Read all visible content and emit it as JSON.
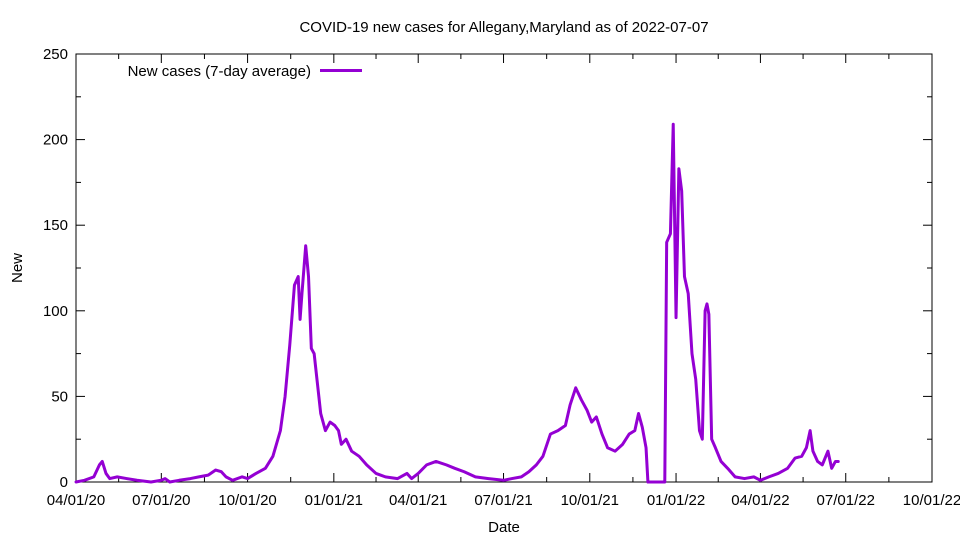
{
  "chart_data": {
    "type": "line",
    "title": "COVID-19 new cases for Allegany,Maryland as of 2022-07-07",
    "xlabel": "Date",
    "ylabel": "New",
    "xlim": [
      "2020-04-01",
      "2022-10-01"
    ],
    "ylim": [
      0,
      250
    ],
    "x_ticks": [
      {
        "date": "2020-04-01",
        "label": "04/01/20"
      },
      {
        "date": "2020-07-01",
        "label": "07/01/20"
      },
      {
        "date": "2020-10-01",
        "label": "10/01/20"
      },
      {
        "date": "2021-01-01",
        "label": "01/01/21"
      },
      {
        "date": "2021-04-01",
        "label": "04/01/21"
      },
      {
        "date": "2021-07-01",
        "label": "07/01/21"
      },
      {
        "date": "2021-10-01",
        "label": "10/01/21"
      },
      {
        "date": "2022-01-01",
        "label": "01/01/22"
      },
      {
        "date": "2022-04-01",
        "label": "04/01/22"
      },
      {
        "date": "2022-07-01",
        "label": "07/01/22"
      },
      {
        "date": "2022-10-01",
        "label": "10/01/22"
      }
    ],
    "y_ticks": [
      0,
      50,
      100,
      150,
      200,
      250
    ],
    "grid": false,
    "legend_position": "top-left",
    "series": [
      {
        "name": "New cases (7-day average)",
        "color": "#9400d3",
        "points": [
          [
            "2020-04-01",
            0
          ],
          [
            "2020-04-10",
            1
          ],
          [
            "2020-04-20",
            3
          ],
          [
            "2020-04-26",
            10
          ],
          [
            "2020-04-29",
            12
          ],
          [
            "2020-05-03",
            5
          ],
          [
            "2020-05-07",
            2
          ],
          [
            "2020-05-15",
            3
          ],
          [
            "2020-05-25",
            2
          ],
          [
            "2020-06-05",
            1
          ],
          [
            "2020-06-20",
            0
          ],
          [
            "2020-07-01",
            1
          ],
          [
            "2020-07-05",
            2
          ],
          [
            "2020-07-10",
            0
          ],
          [
            "2020-07-20",
            1
          ],
          [
            "2020-08-01",
            2
          ],
          [
            "2020-08-10",
            3
          ],
          [
            "2020-08-20",
            4
          ],
          [
            "2020-08-28",
            7
          ],
          [
            "2020-09-03",
            6
          ],
          [
            "2020-09-08",
            3
          ],
          [
            "2020-09-15",
            1
          ],
          [
            "2020-09-25",
            3
          ],
          [
            "2020-10-01",
            2
          ],
          [
            "2020-10-10",
            5
          ],
          [
            "2020-10-20",
            8
          ],
          [
            "2020-10-28",
            15
          ],
          [
            "2020-11-05",
            30
          ],
          [
            "2020-11-10",
            50
          ],
          [
            "2020-11-15",
            80
          ],
          [
            "2020-11-20",
            115
          ],
          [
            "2020-11-24",
            120
          ],
          [
            "2020-11-26",
            95
          ],
          [
            "2020-11-28",
            110
          ],
          [
            "2020-12-02",
            138
          ],
          [
            "2020-12-05",
            120
          ],
          [
            "2020-12-08",
            78
          ],
          [
            "2020-12-11",
            75
          ],
          [
            "2020-12-14",
            60
          ],
          [
            "2020-12-18",
            40
          ],
          [
            "2020-12-23",
            30
          ],
          [
            "2020-12-28",
            35
          ],
          [
            "2021-01-02",
            33
          ],
          [
            "2021-01-06",
            30
          ],
          [
            "2021-01-09",
            22
          ],
          [
            "2021-01-14",
            25
          ],
          [
            "2021-01-20",
            18
          ],
          [
            "2021-01-28",
            15
          ],
          [
            "2021-02-05",
            10
          ],
          [
            "2021-02-15",
            5
          ],
          [
            "2021-02-25",
            3
          ],
          [
            "2021-03-10",
            2
          ],
          [
            "2021-03-20",
            5
          ],
          [
            "2021-03-25",
            2
          ],
          [
            "2021-04-01",
            5
          ],
          [
            "2021-04-10",
            10
          ],
          [
            "2021-04-20",
            12
          ],
          [
            "2021-05-01",
            10
          ],
          [
            "2021-05-10",
            8
          ],
          [
            "2021-05-20",
            6
          ],
          [
            "2021-06-01",
            3
          ],
          [
            "2021-06-15",
            2
          ],
          [
            "2021-07-01",
            1
          ],
          [
            "2021-07-10",
            2
          ],
          [
            "2021-07-20",
            3
          ],
          [
            "2021-07-28",
            6
          ],
          [
            "2021-08-05",
            10
          ],
          [
            "2021-08-12",
            15
          ],
          [
            "2021-08-20",
            28
          ],
          [
            "2021-08-28",
            30
          ],
          [
            "2021-09-05",
            33
          ],
          [
            "2021-09-10",
            45
          ],
          [
            "2021-09-16",
            55
          ],
          [
            "2021-09-22",
            48
          ],
          [
            "2021-09-28",
            42
          ],
          [
            "2021-10-03",
            35
          ],
          [
            "2021-10-08",
            38
          ],
          [
            "2021-10-14",
            28
          ],
          [
            "2021-10-20",
            20
          ],
          [
            "2021-10-28",
            18
          ],
          [
            "2021-11-05",
            22
          ],
          [
            "2021-11-12",
            28
          ],
          [
            "2021-11-18",
            30
          ],
          [
            "2021-11-22",
            40
          ],
          [
            "2021-11-26",
            32
          ],
          [
            "2021-11-30",
            20
          ],
          [
            "2021-12-02",
            0
          ],
          [
            "2021-12-20",
            0
          ],
          [
            "2021-12-22",
            140
          ],
          [
            "2021-12-26",
            145
          ],
          [
            "2021-12-29",
            209
          ],
          [
            "2022-01-01",
            96
          ],
          [
            "2022-01-04",
            183
          ],
          [
            "2022-01-07",
            170
          ],
          [
            "2022-01-10",
            120
          ],
          [
            "2022-01-14",
            110
          ],
          [
            "2022-01-18",
            75
          ],
          [
            "2022-01-22",
            60
          ],
          [
            "2022-01-26",
            30
          ],
          [
            "2022-01-29",
            25
          ],
          [
            "2022-02-01",
            100
          ],
          [
            "2022-02-03",
            104
          ],
          [
            "2022-02-05",
            98
          ],
          [
            "2022-02-08",
            25
          ],
          [
            "2022-02-12",
            20
          ],
          [
            "2022-02-18",
            12
          ],
          [
            "2022-02-25",
            8
          ],
          [
            "2022-03-05",
            3
          ],
          [
            "2022-03-15",
            2
          ],
          [
            "2022-03-25",
            3
          ],
          [
            "2022-04-01",
            1
          ],
          [
            "2022-04-10",
            3
          ],
          [
            "2022-04-20",
            5
          ],
          [
            "2022-04-30",
            8
          ],
          [
            "2022-05-08",
            14
          ],
          [
            "2022-05-15",
            15
          ],
          [
            "2022-05-20",
            20
          ],
          [
            "2022-05-24",
            30
          ],
          [
            "2022-05-27",
            18
          ],
          [
            "2022-06-01",
            12
          ],
          [
            "2022-06-06",
            10
          ],
          [
            "2022-06-12",
            18
          ],
          [
            "2022-06-16",
            8
          ],
          [
            "2022-06-20",
            12
          ],
          [
            "2022-06-23",
            12
          ]
        ]
      }
    ]
  }
}
